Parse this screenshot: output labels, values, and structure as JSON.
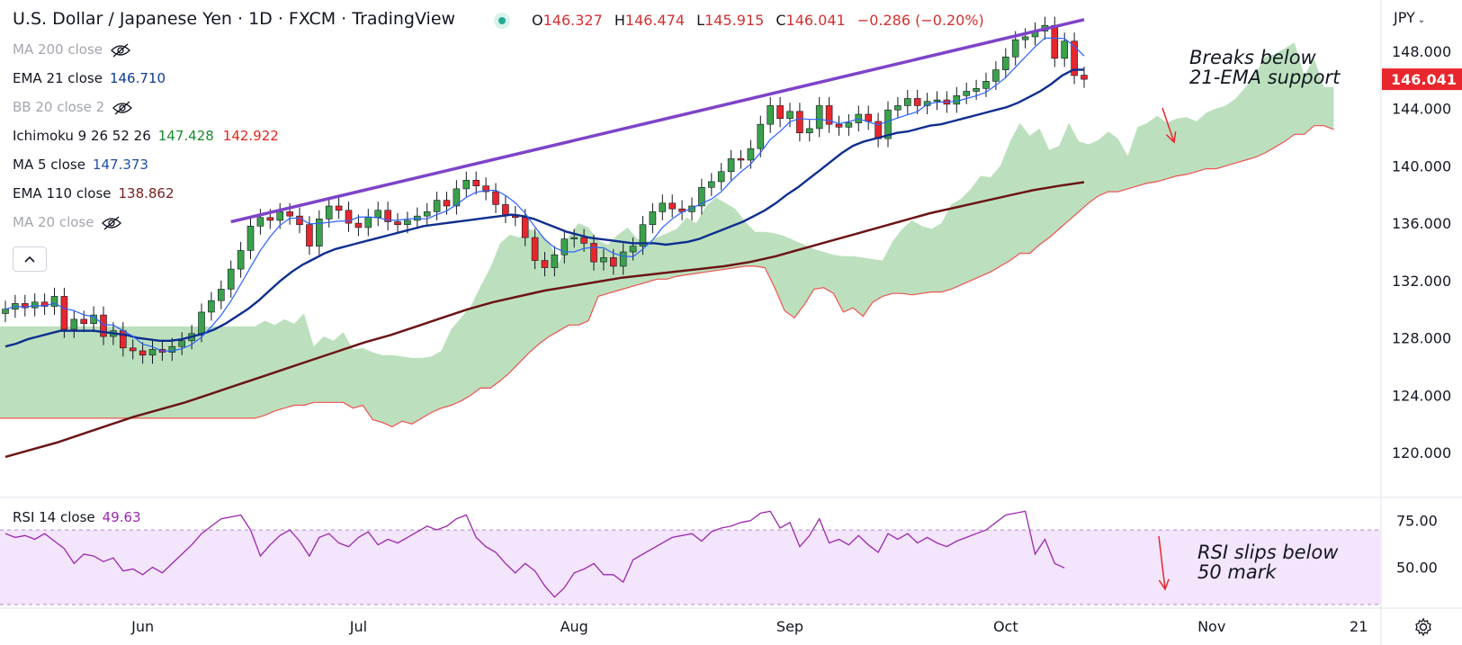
{
  "header": {
    "title": "U.S. Dollar / Japanese Yen · 1D · FXCM · TradingView",
    "ohlc": {
      "o": "146.327",
      "h": "146.474",
      "l": "145.915",
      "c": "146.041",
      "chg": "−0.286 (−0.20%)"
    }
  },
  "indicators": [
    {
      "label": "MA 200 close",
      "values": [],
      "hidden": true
    },
    {
      "label": "EMA 21 close",
      "values": [
        {
          "text": "146.710",
          "color": "#0d3b96"
        }
      ],
      "hidden": false
    },
    {
      "label": "BB 20 close 2",
      "values": [],
      "hidden": true
    },
    {
      "label": "Ichimoku 9 26 52 26",
      "values": [
        {
          "text": "147.428",
          "color": "#1b8a2e"
        },
        {
          "text": "142.922",
          "color": "#e0261c"
        }
      ],
      "hidden": false
    },
    {
      "label": "MA 5 close",
      "values": [
        {
          "text": "147.373",
          "color": "#1e4fa8"
        }
      ],
      "hidden": false
    },
    {
      "label": "EMA 110 close",
      "values": [
        {
          "text": "138.862",
          "color": "#7b1c1c"
        }
      ],
      "hidden": false
    },
    {
      "label": "MA 20 close",
      "values": [],
      "hidden": true
    }
  ],
  "currency": "JPY",
  "collapse_icon": "chevron-up-icon",
  "annotations": {
    "breaks_line1": "Breaks below",
    "breaks_line2": "21-EMA support",
    "rsi_line1": "RSI slips below",
    "rsi_line2": "50 mark"
  },
  "rsi": {
    "label": "RSI 14 close",
    "value": "49.63"
  },
  "colors": {
    "up": "#26a69a",
    "up_body": "#3aa24a",
    "down": "#e8262d",
    "ema21": "#0d2e8f",
    "ma5": "#2962ff",
    "ema110": "#6b1414",
    "cloud": "#a5d6a7",
    "trendline": "#7e43c9",
    "rsi_line": "#9c27b0",
    "rsi_band": "#f3e5fb",
    "price_tag": "#e8262d"
  },
  "chart_data": {
    "type": "candlestick",
    "symbol": "USDJPY",
    "timeframe": "1D",
    "ylim": [
      118,
      150
    ],
    "y_ticks": [
      120,
      124,
      128,
      132,
      136,
      140,
      144,
      148
    ],
    "y_tick_labels": [
      "120.000",
      "124.000",
      "128.000",
      "132.000",
      "136.000",
      "140.000",
      "144.000",
      "148.000"
    ],
    "last_price": "146.041",
    "x_ticks": [
      "Jun",
      "Jul",
      "Aug",
      "Sep",
      "Oct",
      "Nov",
      "21"
    ],
    "x_tick_index": [
      14,
      36,
      58,
      80,
      102,
      123,
      138
    ],
    "closes": [
      130.0,
      130.4,
      130.1,
      130.5,
      130.2,
      130.9,
      128.6,
      129.3,
      129.0,
      129.6,
      128.1,
      128.5,
      127.3,
      127.1,
      126.8,
      127.2,
      127.0,
      127.4,
      127.8,
      128.3,
      129.8,
      130.6,
      131.4,
      132.8,
      134.1,
      135.8,
      136.4,
      136.2,
      136.8,
      136.5,
      135.9,
      134.4,
      136.3,
      137.2,
      136.9,
      136.0,
      135.7,
      136.4,
      136.9,
      136.1,
      135.9,
      136.2,
      136.5,
      136.8,
      137.6,
      137.2,
      138.4,
      139.0,
      138.6,
      138.2,
      137.3,
      136.6,
      136.4,
      135.0,
      133.4,
      132.9,
      133.8,
      134.9,
      135.0,
      134.6,
      133.3,
      133.6,
      133.0,
      134.0,
      134.4,
      135.9,
      136.8,
      137.4,
      137.0,
      136.8,
      137.2,
      138.5,
      138.9,
      139.6,
      140.5,
      140.4,
      141.2,
      142.9,
      144.2,
      143.3,
      143.8,
      142.3,
      142.6,
      144.2,
      142.9,
      142.7,
      143.0,
      143.6,
      143.1,
      141.9,
      143.9,
      144.2,
      144.7,
      144.2,
      144.5,
      144.6,
      144.3,
      144.9,
      145.2,
      145.4,
      145.9,
      146.7,
      147.6,
      148.8,
      149.0,
      149.4,
      149.8,
      147.5,
      148.7,
      146.3,
      146.041
    ],
    "opens": [
      129.7,
      130.0,
      130.4,
      130.1,
      130.5,
      130.2,
      130.9,
      128.6,
      129.3,
      129.0,
      129.6,
      128.1,
      128.5,
      127.3,
      127.1,
      126.8,
      127.2,
      127.0,
      127.4,
      127.8,
      128.3,
      129.8,
      130.6,
      131.4,
      132.8,
      134.1,
      135.8,
      136.4,
      136.2,
      136.8,
      136.5,
      135.9,
      134.4,
      136.3,
      137.2,
      136.9,
      136.0,
      135.7,
      136.4,
      136.9,
      136.1,
      135.9,
      136.2,
      136.5,
      136.8,
      137.6,
      137.2,
      138.4,
      139.0,
      138.6,
      138.2,
      137.3,
      136.6,
      136.4,
      135.0,
      133.4,
      132.9,
      133.8,
      134.9,
      135.0,
      134.6,
      133.3,
      133.6,
      133.0,
      134.0,
      134.4,
      135.9,
      136.8,
      137.4,
      137.0,
      136.8,
      137.2,
      138.5,
      138.9,
      139.6,
      140.5,
      140.4,
      141.2,
      142.9,
      144.2,
      143.3,
      143.8,
      142.3,
      142.6,
      144.2,
      142.9,
      142.7,
      143.0,
      143.6,
      143.1,
      141.9,
      143.9,
      144.2,
      144.7,
      144.2,
      144.5,
      144.6,
      144.3,
      144.9,
      145.2,
      145.4,
      145.9,
      146.7,
      147.6,
      148.8,
      149.0,
      149.4,
      149.8,
      147.5,
      148.7,
      146.327
    ],
    "ema21": [
      127.4,
      127.6,
      127.9,
      128.1,
      128.3,
      128.5,
      128.5,
      128.5,
      128.5,
      128.4,
      128.3,
      128.2,
      128.0,
      127.9,
      127.8,
      127.8,
      127.9,
      128.1,
      128.3,
      128.6,
      129.0,
      129.5,
      130.0,
      130.6,
      131.3,
      132.0,
      132.6,
      133.1,
      133.5,
      133.9,
      134.2,
      134.4,
      134.6,
      134.8,
      135.0,
      135.2,
      135.4,
      135.6,
      135.8,
      135.9,
      136.0,
      136.1,
      136.2,
      136.3,
      136.4,
      136.5,
      136.6,
      136.5,
      136.3,
      136.0,
      135.7,
      135.4,
      135.2,
      135.0,
      134.9,
      134.8,
      134.7,
      134.6,
      134.6,
      134.6,
      134.5,
      134.6,
      134.7,
      134.9,
      135.2,
      135.5,
      135.8,
      136.1,
      136.5,
      136.9,
      137.4,
      138.0,
      138.5,
      139.1,
      139.7,
      140.3,
      140.9,
      141.4,
      141.7,
      141.9,
      142.1,
      142.3,
      142.4,
      142.6,
      142.8,
      142.9,
      143.1,
      143.3,
      143.5,
      143.7,
      143.9,
      144.1,
      144.4,
      144.8,
      145.2,
      145.7,
      146.3,
      146.7,
      146.71
    ],
    "ema110": [
      119.7,
      120.2,
      120.7,
      121.3,
      121.9,
      122.5,
      123.0,
      123.5,
      124.1,
      124.7,
      125.3,
      125.9,
      126.5,
      127.1,
      127.7,
      128.2,
      128.8,
      129.4,
      130.0,
      130.5,
      130.9,
      131.3,
      131.6,
      131.9,
      132.2,
      132.4,
      132.6,
      132.8,
      133.0,
      133.3,
      133.7,
      134.2,
      134.7,
      135.2,
      135.7,
      136.2,
      136.7,
      137.1,
      137.5,
      137.9,
      138.3,
      138.6,
      138.862
    ],
    "rsi_ylim": [
      30,
      85
    ],
    "rsi_ticks": [
      50,
      75
    ],
    "rsi_tick_labels": [
      "50.00",
      "75.00"
    ],
    "rsi_band": [
      30,
      70
    ],
    "rsi_values": [
      68,
      66,
      67,
      65,
      68,
      64,
      60,
      52,
      57,
      56,
      53,
      55,
      48,
      49,
      46,
      50,
      47,
      52,
      57,
      62,
      68,
      72,
      76,
      77,
      78,
      70,
      56,
      62,
      67,
      70,
      64,
      56,
      66,
      68,
      63,
      61,
      66,
      69,
      62,
      65,
      63,
      66,
      69,
      72,
      70,
      72,
      76,
      78,
      66,
      61,
      58,
      52,
      47,
      52,
      48,
      40,
      34,
      39,
      47,
      49,
      52,
      46,
      46,
      42,
      54,
      57,
      60,
      63,
      66,
      67,
      68,
      64,
      69,
      71,
      72,
      74,
      75,
      79,
      80,
      71,
      74,
      61,
      67,
      76,
      63,
      65,
      62,
      67,
      62,
      58,
      68,
      65,
      68,
      63,
      66,
      63,
      61,
      64,
      66,
      68,
      70,
      74,
      78,
      79,
      80,
      57,
      65,
      52,
      49.63
    ]
  }
}
